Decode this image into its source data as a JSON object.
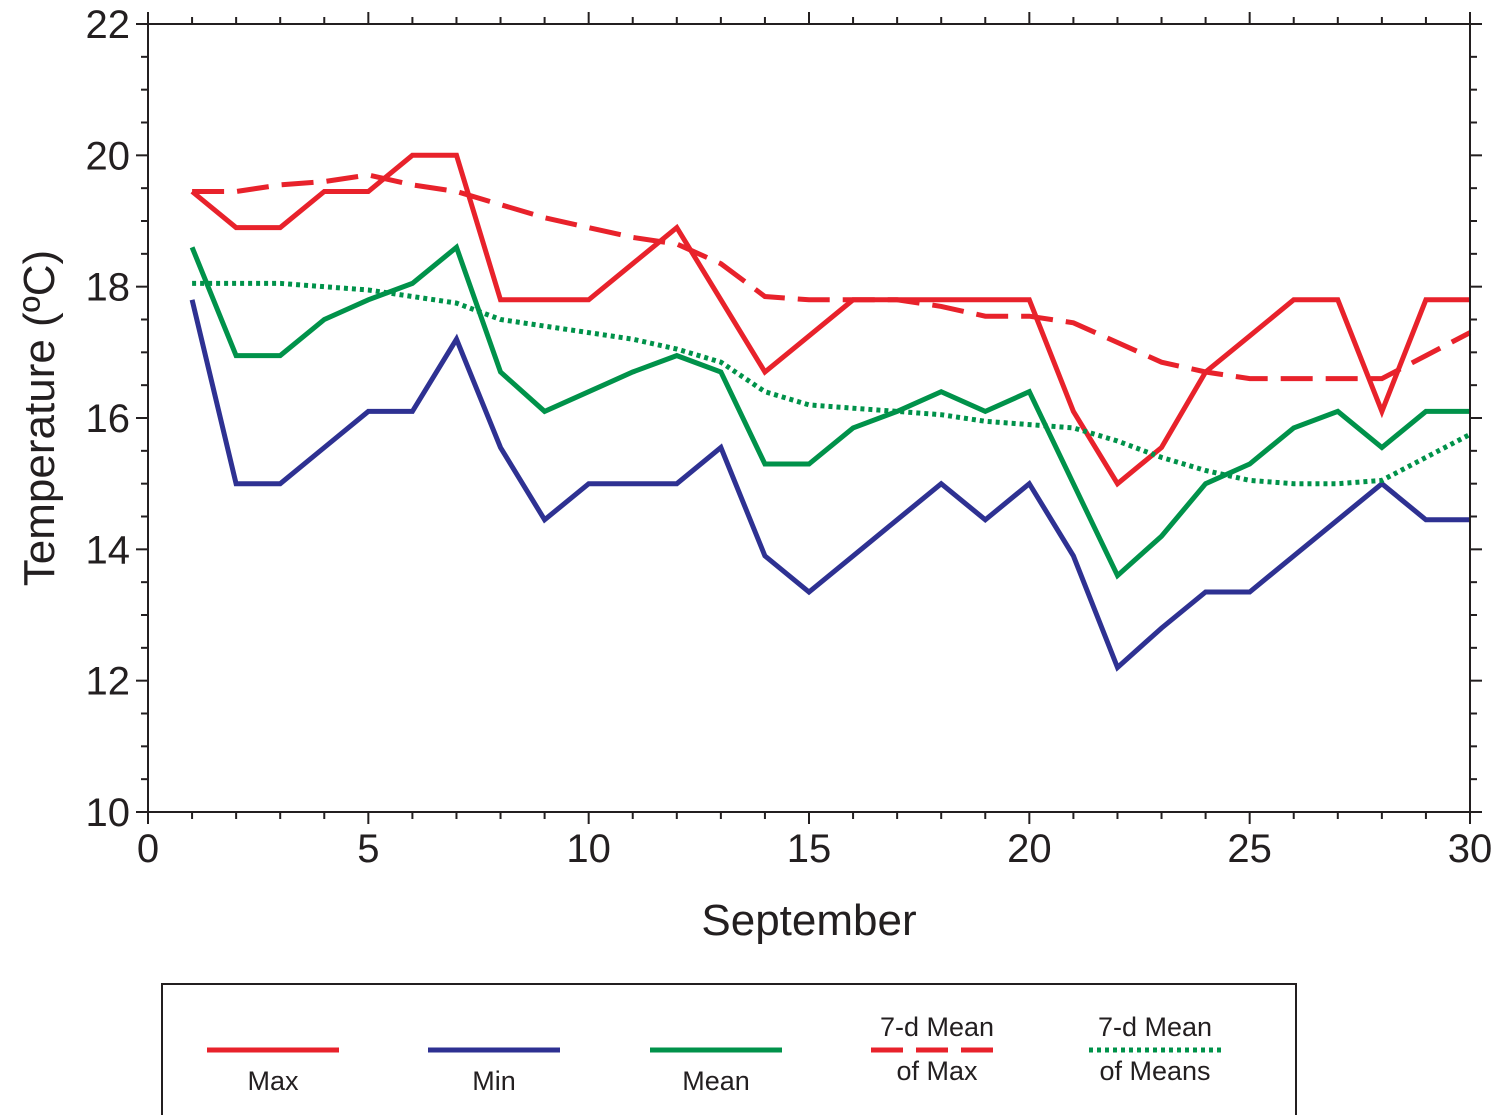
{
  "chart_data": {
    "type": "line",
    "xlabel": "September",
    "ylabel": "Temperature (ºC)",
    "ylim": [
      10,
      22
    ],
    "xlim": [
      0,
      30
    ],
    "xticks": [
      "0",
      "5",
      "10",
      "15",
      "20",
      "25",
      "30"
    ],
    "yticks": [
      "10",
      "12",
      "14",
      "16",
      "18",
      "20",
      "22"
    ],
    "grid": false,
    "legend_position": "bottom",
    "series": [
      {
        "key": "max",
        "color": "#e8222b",
        "style": "solid",
        "legend_lines": [
          "Max"
        ],
        "x": [
          1,
          2,
          3,
          4,
          5,
          6,
          7,
          8,
          9,
          10,
          11,
          12,
          13,
          14,
          15,
          16,
          17,
          18,
          19,
          20,
          21,
          22,
          23,
          24,
          25,
          26,
          27,
          28,
          29,
          30
        ],
        "values": [
          19.45,
          18.9,
          18.9,
          19.45,
          19.45,
          20.0,
          20.0,
          17.8,
          17.8,
          17.8,
          18.35,
          18.9,
          17.8,
          16.7,
          17.25,
          17.8,
          17.8,
          17.8,
          17.8,
          17.8,
          16.1,
          15.0,
          15.55,
          16.7,
          17.25,
          17.8,
          17.8,
          16.1,
          17.8,
          17.8
        ]
      },
      {
        "key": "min",
        "color": "#2e3192",
        "style": "solid",
        "legend_lines": [
          "Min"
        ],
        "x": [
          1,
          2,
          3,
          4,
          5,
          6,
          7,
          8,
          9,
          10,
          11,
          12,
          13,
          14,
          15,
          16,
          17,
          18,
          19,
          20,
          21,
          22,
          23,
          24,
          25,
          26,
          27,
          28,
          29,
          30
        ],
        "values": [
          17.8,
          15.0,
          15.0,
          15.55,
          16.1,
          16.1,
          17.2,
          15.55,
          14.45,
          15.0,
          15.0,
          15.0,
          15.55,
          13.9,
          13.35,
          13.9,
          14.45,
          15.0,
          14.45,
          15.0,
          13.9,
          12.2,
          12.8,
          13.35,
          13.35,
          13.9,
          14.45,
          15.0,
          14.45,
          14.45
        ]
      },
      {
        "key": "mean",
        "color": "#00924a",
        "style": "solid",
        "legend_lines": [
          "Mean"
        ],
        "x": [
          1,
          2,
          3,
          4,
          5,
          6,
          7,
          8,
          9,
          10,
          11,
          12,
          13,
          14,
          15,
          16,
          17,
          18,
          19,
          20,
          21,
          22,
          23,
          24,
          25,
          26,
          27,
          28,
          29,
          30
        ],
        "values": [
          18.6,
          16.95,
          16.95,
          17.5,
          17.8,
          18.05,
          18.6,
          16.7,
          16.1,
          16.4,
          16.7,
          16.95,
          16.7,
          15.3,
          15.3,
          15.85,
          16.1,
          16.4,
          16.1,
          16.4,
          15.0,
          13.6,
          14.2,
          15.0,
          15.3,
          15.85,
          16.1,
          15.55,
          16.1,
          16.1
        ]
      },
      {
        "key": "max7d",
        "color": "#e8222b",
        "style": "dashed",
        "legend_lines": [
          "7-d Mean",
          "of Max"
        ],
        "x": [
          1,
          2,
          3,
          4,
          5,
          6,
          7,
          8,
          9,
          10,
          11,
          12,
          13,
          14,
          15,
          16,
          17,
          18,
          19,
          20,
          21,
          22,
          23,
          24,
          25,
          26,
          27,
          28,
          29,
          30
        ],
        "values": [
          19.45,
          19.45,
          19.55,
          19.6,
          19.7,
          19.55,
          19.45,
          19.25,
          19.05,
          18.9,
          18.75,
          18.65,
          18.35,
          17.85,
          17.8,
          17.8,
          17.8,
          17.7,
          17.55,
          17.55,
          17.45,
          17.15,
          16.85,
          16.7,
          16.6,
          16.6,
          16.6,
          16.6,
          16.95,
          17.3
        ]
      },
      {
        "key": "mean7d",
        "color": "#00924a",
        "style": "dotted",
        "legend_lines": [
          "7-d Mean",
          "of Means"
        ],
        "x": [
          1,
          2,
          3,
          4,
          5,
          6,
          7,
          8,
          9,
          10,
          11,
          12,
          13,
          14,
          15,
          16,
          17,
          18,
          19,
          20,
          21,
          22,
          23,
          24,
          25,
          26,
          27,
          28,
          29,
          30
        ],
        "values": [
          18.05,
          18.05,
          18.05,
          18.0,
          17.95,
          17.85,
          17.75,
          17.5,
          17.4,
          17.3,
          17.2,
          17.05,
          16.85,
          16.4,
          16.2,
          16.15,
          16.1,
          16.05,
          15.95,
          15.9,
          15.85,
          15.65,
          15.4,
          15.2,
          15.05,
          15.0,
          15.0,
          15.05,
          15.4,
          15.75
        ]
      }
    ]
  }
}
